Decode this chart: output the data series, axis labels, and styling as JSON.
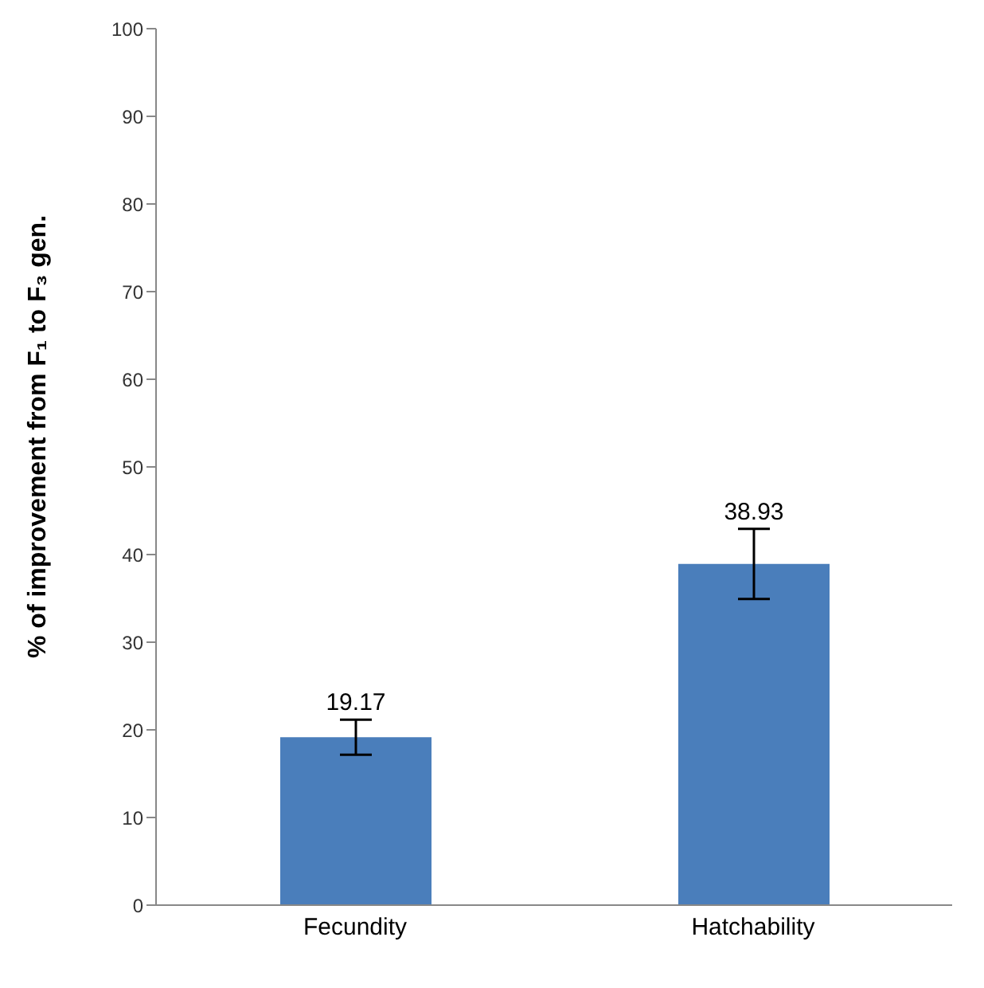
{
  "chart_data": {
    "type": "bar",
    "ylabel": "% of improvement from F₁ to F₃ gen.",
    "categories": [
      "Fecundity",
      "Hatchability"
    ],
    "values": [
      19.17,
      38.93
    ],
    "color": "#4a7ebb",
    "errors": [
      2,
      4
    ],
    "value_labels": [
      "19.17",
      "38.93"
    ],
    "ylim": [
      0,
      100
    ],
    "yticks": [
      0,
      10,
      20,
      30,
      40,
      50,
      60,
      70,
      80,
      90,
      100
    ],
    "grid": false,
    "legend": false
  }
}
